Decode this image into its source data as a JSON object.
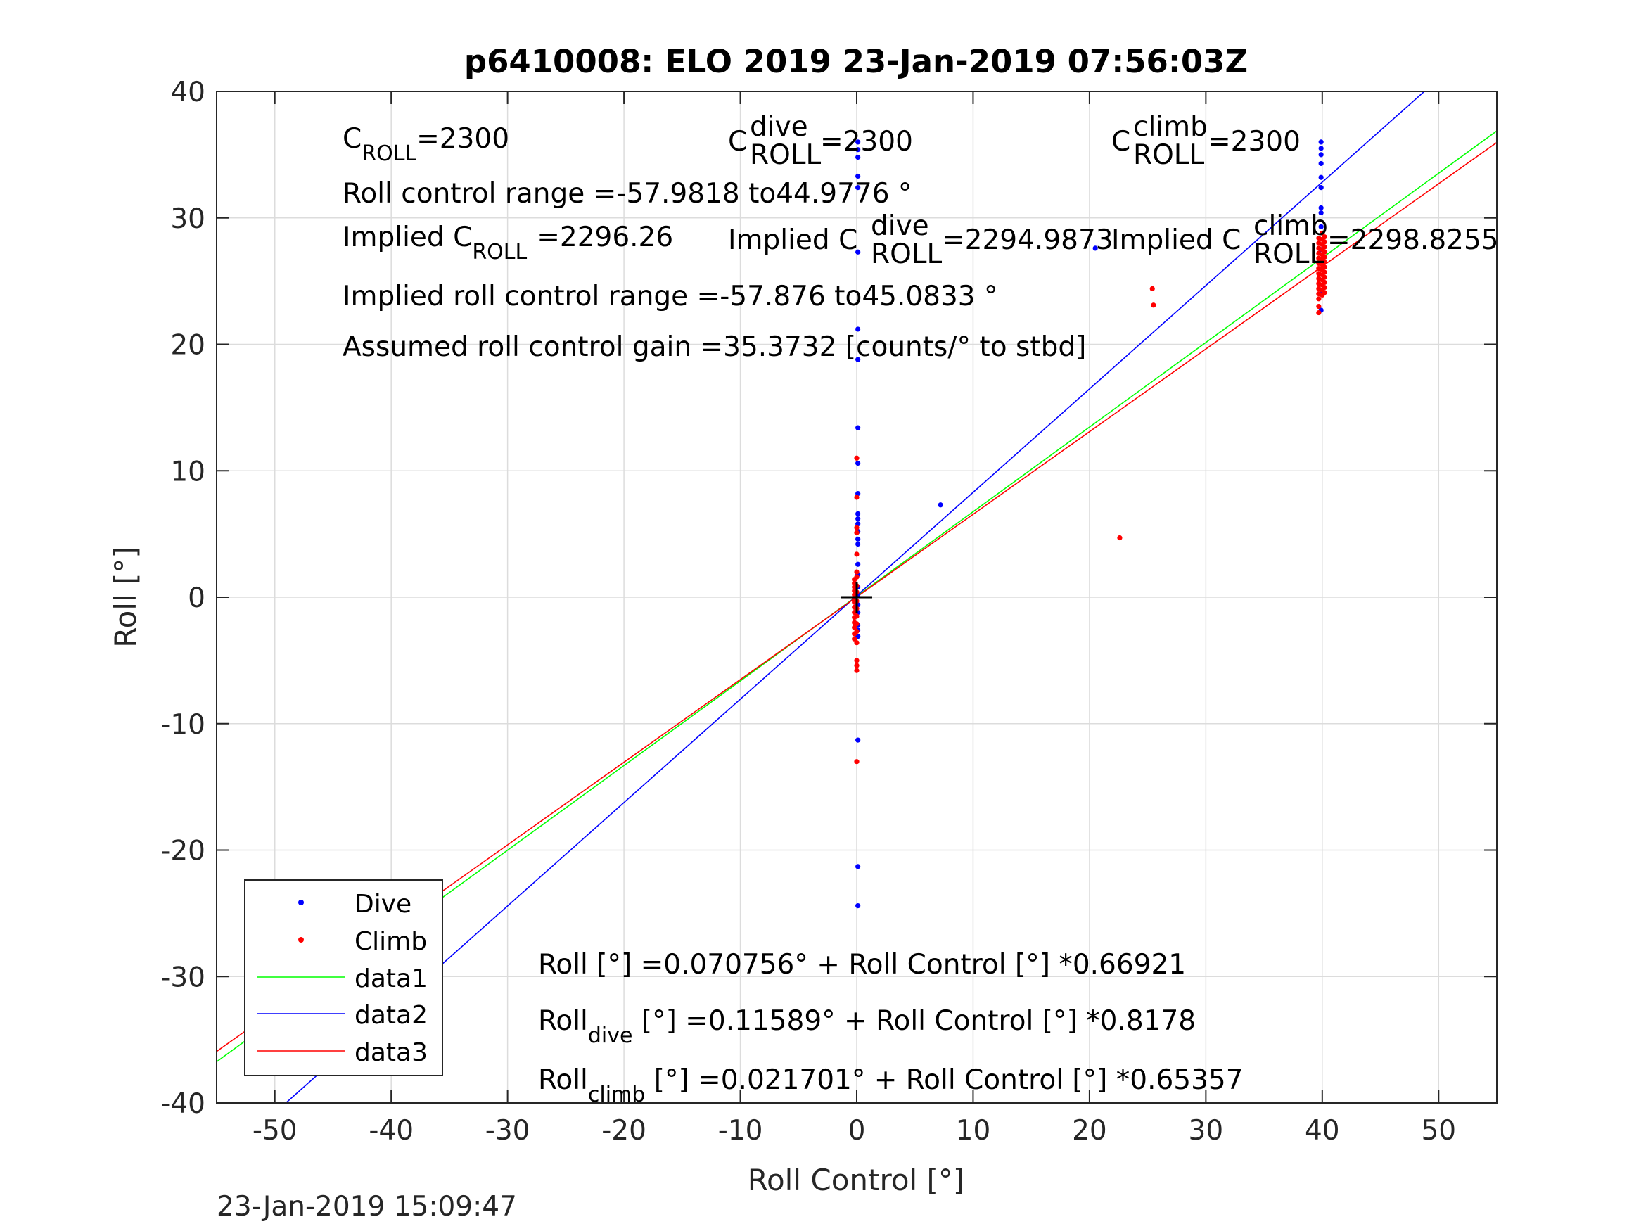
{
  "chart_data": {
    "type": "scatter",
    "title": "p6410008: ELO 2019 23-Jan-2019 07:56:03Z",
    "xlabel": "Roll Control [°]",
    "ylabel": "Roll [°]",
    "xlim": [
      -55,
      55
    ],
    "ylim": [
      -40,
      40
    ],
    "xticks": [
      "-50",
      "-40",
      "-30",
      "-20",
      "-10",
      "0",
      "10",
      "20",
      "30",
      "40",
      "50"
    ],
    "yticks": [
      "-40",
      "-30",
      "-20",
      "-10",
      "0",
      "10",
      "20",
      "30",
      "40"
    ],
    "grid": true,
    "legend_position": "bottom-left",
    "legend": [
      "Dive",
      "Climb",
      "data1",
      "data2",
      "data3"
    ],
    "timestamp": "23-Jan-2019 15:09:47",
    "series": [
      {
        "name": "Dive",
        "kind": "points",
        "color": "#0000ff",
        "points": [
          [
            0.1,
            36.0
          ],
          [
            0.1,
            35.4
          ],
          [
            0.1,
            34.8
          ],
          [
            0.1,
            33.3
          ],
          [
            0.1,
            32.4
          ],
          [
            0.1,
            27.3
          ],
          [
            0.1,
            21.2
          ],
          [
            0.1,
            18.8
          ],
          [
            0.1,
            13.4
          ],
          [
            0.1,
            10.6
          ],
          [
            0.1,
            8.2
          ],
          [
            0.1,
            6.6
          ],
          [
            0.1,
            6.2
          ],
          [
            0.1,
            5.8
          ],
          [
            0.1,
            5.2
          ],
          [
            0.1,
            4.6
          ],
          [
            0.1,
            4.2
          ],
          [
            0.1,
            2.6
          ],
          [
            0.1,
            1.8
          ],
          [
            0.1,
            0.8
          ],
          [
            0.1,
            0.2
          ],
          [
            0.1,
            -0.6
          ],
          [
            0.1,
            -1.2
          ],
          [
            0.1,
            -2.2
          ],
          [
            0.1,
            -2.6
          ],
          [
            0.1,
            -3.1
          ],
          [
            0.1,
            -11.3
          ],
          [
            0.1,
            -21.3
          ],
          [
            0.1,
            -24.4
          ],
          [
            7.2,
            7.3
          ],
          [
            20.5,
            27.6
          ],
          [
            39.9,
            36.0
          ],
          [
            39.9,
            35.5
          ],
          [
            39.9,
            35.0
          ],
          [
            39.9,
            34.3
          ],
          [
            39.9,
            33.2
          ],
          [
            39.9,
            32.4
          ],
          [
            39.9,
            30.8
          ],
          [
            39.9,
            30.4
          ],
          [
            39.9,
            29.3
          ],
          [
            39.9,
            27.5
          ],
          [
            39.9,
            24.0
          ],
          [
            39.9,
            22.7
          ]
        ]
      },
      {
        "name": "Climb",
        "kind": "points",
        "color": "#ff0000",
        "points": [
          [
            -0.2,
            1.4
          ],
          [
            -0.2,
            1.1
          ],
          [
            -0.2,
            0.8
          ],
          [
            -0.2,
            0.5
          ],
          [
            -0.2,
            0.2
          ],
          [
            -0.2,
            -0.1
          ],
          [
            -0.2,
            -0.4
          ],
          [
            -0.2,
            -0.8
          ],
          [
            -0.2,
            -1.2
          ],
          [
            -0.2,
            -1.6
          ],
          [
            -0.2,
            -2.0
          ],
          [
            -0.2,
            -2.4
          ],
          [
            -0.2,
            -2.9
          ],
          [
            -0.2,
            -3.3
          ],
          [
            0.0,
            11.0
          ],
          [
            0.0,
            7.9
          ],
          [
            0.0,
            5.5
          ],
          [
            0.0,
            5.1
          ],
          [
            0.0,
            3.4
          ],
          [
            0.0,
            2.0
          ],
          [
            0.0,
            1.6
          ],
          [
            0.0,
            0.9
          ],
          [
            0.0,
            0.4
          ],
          [
            0.0,
            -0.3
          ],
          [
            0.0,
            -0.9
          ],
          [
            0.0,
            -1.5
          ],
          [
            0.0,
            -2.1
          ],
          [
            0.0,
            -2.7
          ],
          [
            0.0,
            -3.6
          ],
          [
            0.0,
            -5.0
          ],
          [
            0.0,
            -5.4
          ],
          [
            0.0,
            -5.8
          ],
          [
            0.0,
            -13.0
          ],
          [
            22.6,
            4.7
          ],
          [
            25.4,
            24.4
          ],
          [
            25.5,
            23.1
          ],
          [
            39.7,
            28.4
          ],
          [
            39.7,
            28.0
          ],
          [
            39.7,
            27.6
          ],
          [
            39.7,
            27.2
          ],
          [
            39.7,
            26.8
          ],
          [
            39.7,
            26.4
          ],
          [
            39.7,
            26.0
          ],
          [
            39.7,
            25.6
          ],
          [
            39.7,
            25.2
          ],
          [
            39.7,
            24.8
          ],
          [
            39.7,
            24.4
          ],
          [
            39.7,
            24.0
          ],
          [
            39.7,
            23.6
          ],
          [
            39.7,
            23.0
          ],
          [
            39.7,
            22.5
          ],
          [
            40.0,
            28.8
          ],
          [
            40.0,
            28.3
          ],
          [
            40.0,
            27.9
          ],
          [
            40.0,
            27.5
          ],
          [
            40.0,
            27.1
          ],
          [
            40.0,
            26.7
          ],
          [
            40.0,
            26.3
          ],
          [
            40.0,
            25.9
          ],
          [
            40.0,
            25.5
          ],
          [
            40.0,
            25.1
          ],
          [
            40.0,
            24.7
          ],
          [
            40.0,
            24.3
          ],
          [
            40.0,
            23.9
          ],
          [
            40.2,
            28.5
          ],
          [
            40.2,
            28.1
          ],
          [
            40.2,
            27.7
          ],
          [
            40.2,
            27.3
          ],
          [
            40.2,
            26.9
          ],
          [
            40.2,
            26.5
          ],
          [
            40.2,
            26.1
          ],
          [
            40.2,
            25.7
          ],
          [
            40.2,
            25.3
          ],
          [
            40.2,
            24.9
          ],
          [
            40.2,
            24.5
          ],
          [
            40.2,
            24.1
          ]
        ]
      },
      {
        "name": "data1",
        "kind": "line",
        "color": "#00ff00",
        "intercept": 0.070756,
        "slope": 0.66921
      },
      {
        "name": "data2",
        "kind": "line",
        "color": "#0000ff",
        "intercept": 0.11589,
        "slope": 0.8178
      },
      {
        "name": "data3",
        "kind": "line",
        "color": "#ff0000",
        "intercept": 0.021701,
        "slope": 0.65357
      }
    ],
    "origin_marker": "+",
    "annotations": {
      "c_roll": {
        "base": "C",
        "sub": "ROLL",
        "value": "=2300"
      },
      "c_roll_dive": {
        "base": "C",
        "sup": "dive",
        "sub": "ROLL",
        "value": "=2300"
      },
      "c_roll_climb": {
        "base": "C",
        "sup": "climb",
        "sub": "ROLL",
        "value": "=2300"
      },
      "range": "Roll control range =-57.9818 to44.9776 °",
      "implied_c_roll": {
        "pre": "Implied C",
        "sub": "ROLL",
        "value": "=2296.26"
      },
      "implied_c_roll_dive": {
        "pre": "Implied C",
        "sup": "dive",
        "sub": "ROLL",
        "value": "=2294.9873"
      },
      "implied_c_roll_climb": {
        "pre": "Implied C",
        "sup": "climb",
        "sub": "ROLL",
        "value": "=2298.8255"
      },
      "implied_range": "Implied roll control range =-57.876 to45.0833 °",
      "gain": "Assumed roll control gain =35.3732 [counts/° to stbd]",
      "eq_all": "Roll [°] =0.070756° + Roll Control [°] *0.66921",
      "eq_dive": {
        "base": "Roll",
        "sub": "dive",
        "rest": " [°] =0.11589° + Roll Control [°] *0.8178"
      },
      "eq_climb": {
        "base": "Roll",
        "sub": "climb",
        "rest": " [°] =0.021701° + Roll Control [°] *0.65357"
      }
    }
  }
}
